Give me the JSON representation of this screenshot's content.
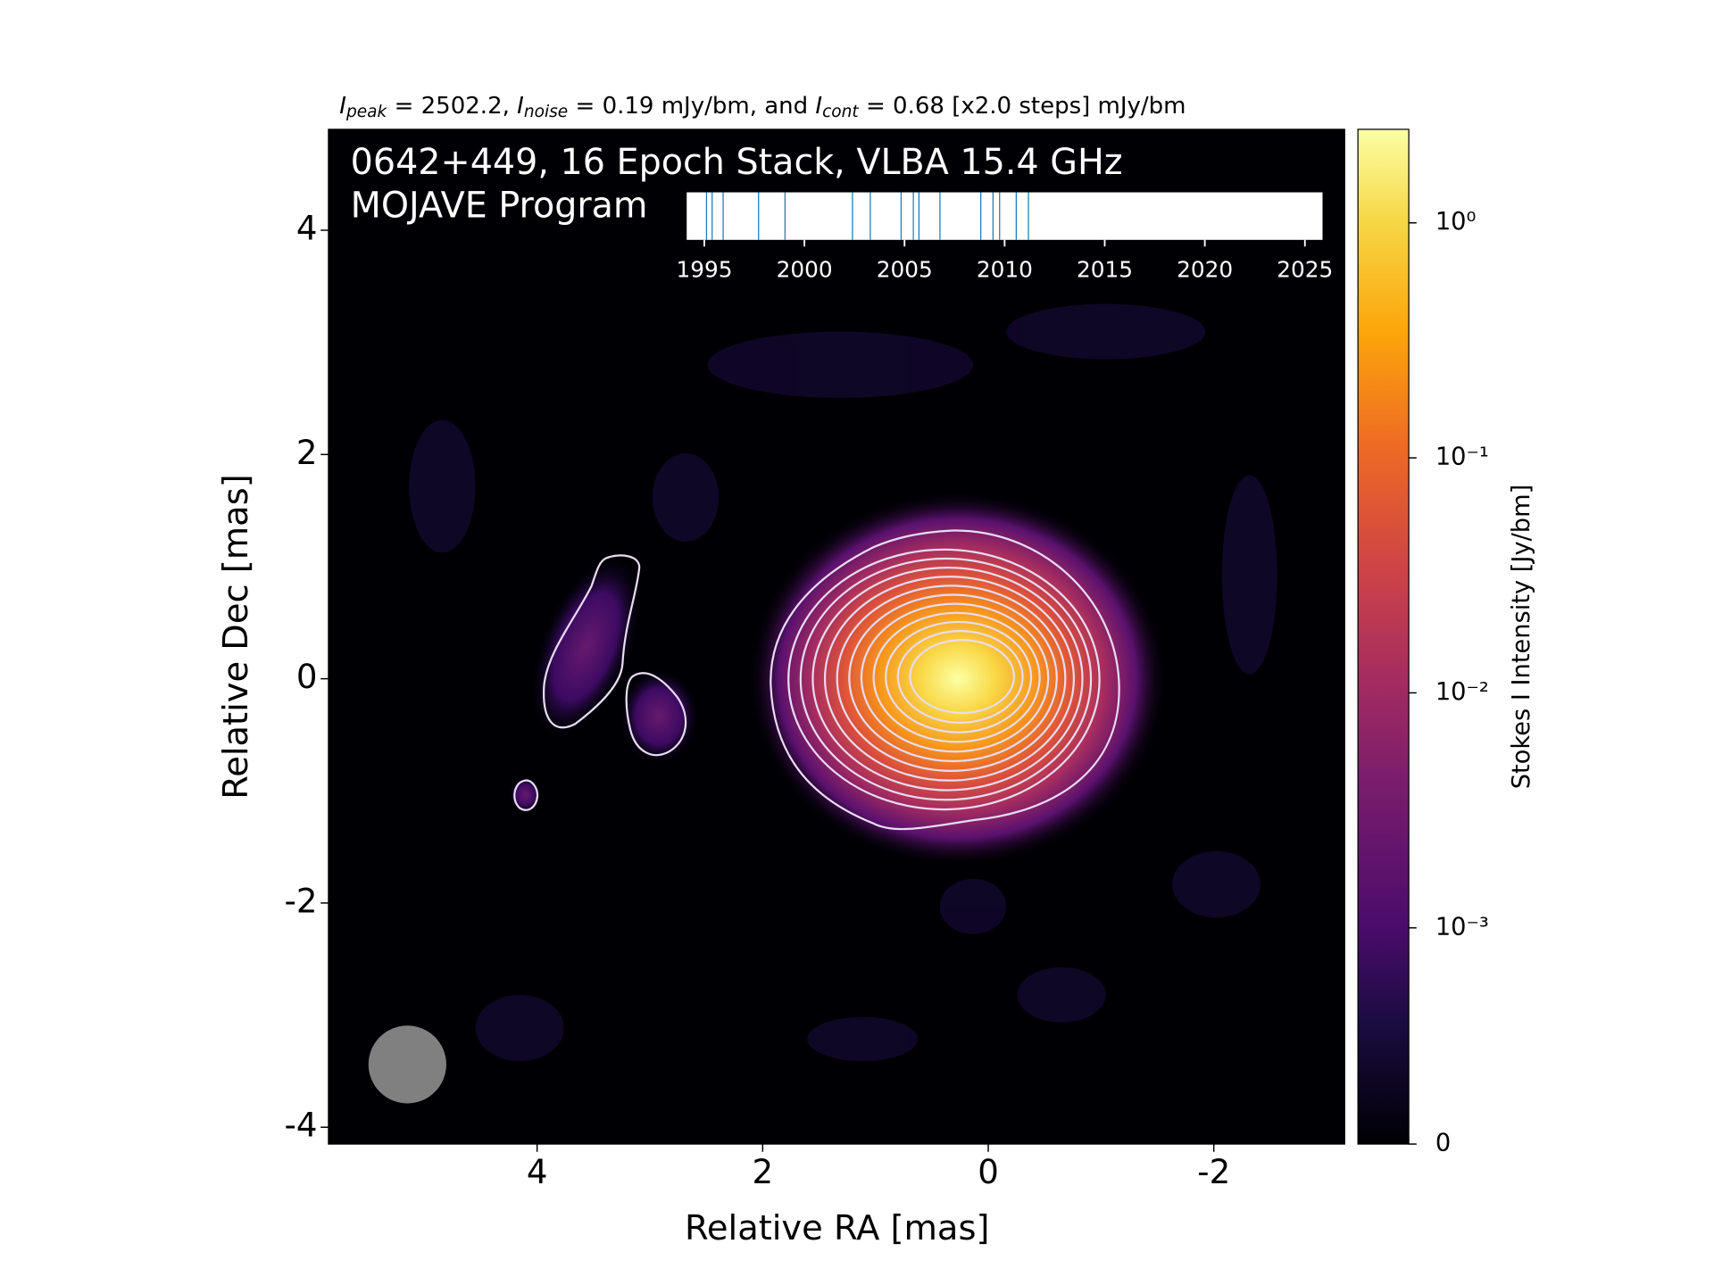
{
  "chart_data": {
    "type": "image",
    "title": [
      {
        "italic": "I",
        "sub": "peak",
        "text": " = 2502.2, "
      },
      {
        "italic": "I",
        "sub": "noise",
        "text": " = 0.19 mJy/bm, and "
      },
      {
        "italic": "I",
        "sub": "cont",
        "text": " = 0.68 [x2.0 steps] mJy/bm"
      }
    ],
    "annotations": [
      "0642+449, 16 Epoch Stack, VLBA 15.4 GHz",
      "MOJAVE Program"
    ],
    "xlabel": "Relative RA [mas]",
    "ylabel": "Relative Dec [mas]",
    "xlim": [
      5.85,
      -3.16
    ],
    "ylim": [
      -4.15,
      4.9
    ],
    "xticks": [
      4,
      2,
      0,
      -2
    ],
    "yticks": [
      -4,
      -2,
      0,
      2,
      4
    ],
    "beam": {
      "x": 5.15,
      "y": -3.44,
      "diameter": 0.69,
      "color": "#808080"
    },
    "colorbar": {
      "label": "Stokes I Intensity [Jy/bm]",
      "scale": "symlog",
      "linthresh": 0.001,
      "clim": [
        0,
        2.5
      ],
      "ticks": [
        0,
        {
          "value": 0.001,
          "label": "10⁻³"
        },
        {
          "value": 0.01,
          "label": "10⁻²"
        },
        {
          "value": 0.1,
          "label": "10⁻¹"
        },
        {
          "value": 1,
          "label": "10⁰"
        }
      ]
    },
    "epochs": {
      "color": "#1f77b4",
      "xlim": [
        1994.12,
        2025.88
      ],
      "xticks": [
        1995,
        2000,
        2005,
        2010,
        2015,
        2020,
        2025
      ],
      "x": [
        1995.11,
        1995.39,
        1995.94,
        1997.71,
        1999.03,
        2002.4,
        2003.29,
        2004.83,
        2005.44,
        2005.72,
        2006.77,
        2008.81,
        2009.42,
        2009.75,
        2010.58,
        2011.19
      ]
    }
  }
}
